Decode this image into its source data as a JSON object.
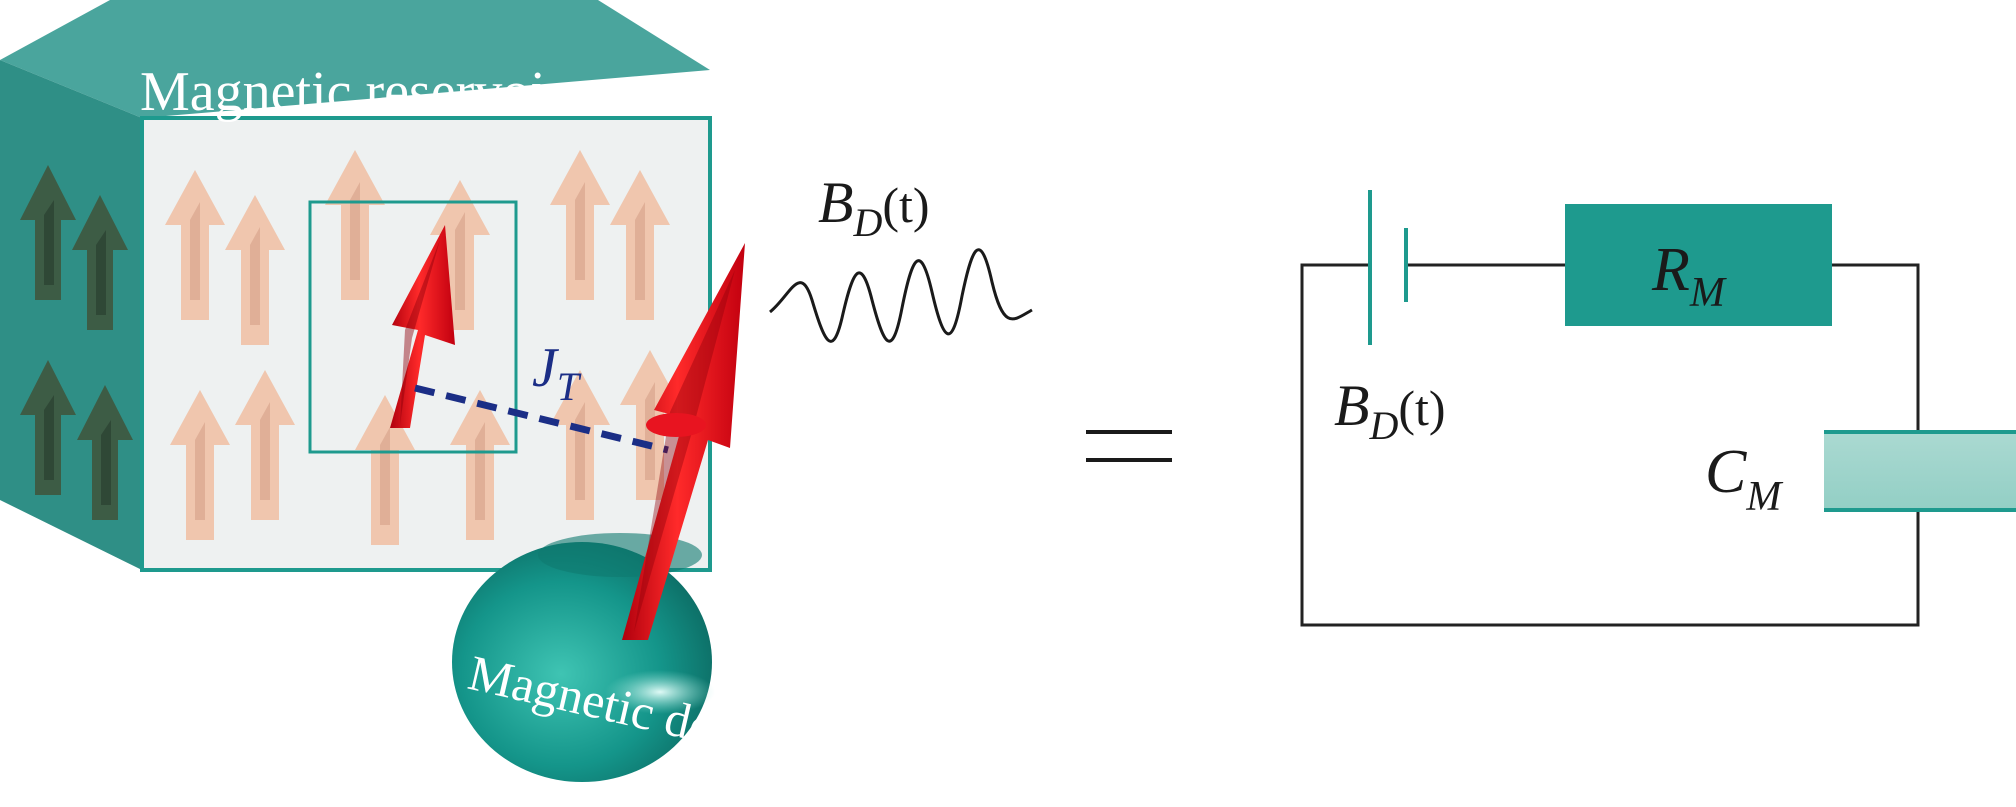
{
  "reservoir": {
    "title": "Magnetic reservoir"
  },
  "coupling": {
    "symbol": "J",
    "subscript": "T"
  },
  "field": {
    "symbol": "B",
    "subscript": "D",
    "argument": "(t)"
  },
  "dot": {
    "label": "Magnetic dot"
  },
  "equivalence": {
    "symbol": "="
  },
  "circuit": {
    "source": {
      "symbol": "B",
      "subscript": "D",
      "argument": "(t)"
    },
    "resistor": {
      "symbol": "R",
      "subscript": "M"
    },
    "capacitor": {
      "symbol": "C",
      "subscript": "M"
    }
  },
  "colors": {
    "teal": "#1e9a8e",
    "teal_dark": "#12796f",
    "spin_light": "#efc3aa",
    "spin_dark": "#3e5a41",
    "spin_red": "#e30613",
    "coupling_line": "#1b2e86",
    "wire": "#222222"
  }
}
